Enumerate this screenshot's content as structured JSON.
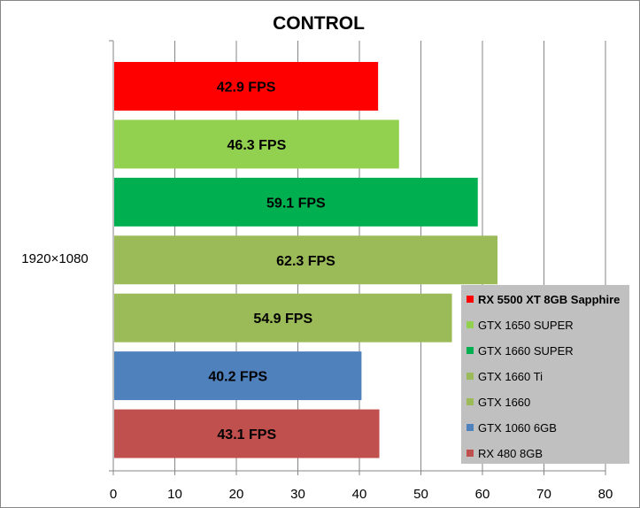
{
  "chart_data": {
    "type": "bar",
    "orientation": "horizontal",
    "title": "CONTROL",
    "category": "1920×1080",
    "xlim": [
      0,
      80
    ],
    "xticks": [
      "0",
      "10",
      "20",
      "30",
      "40",
      "50",
      "60",
      "70",
      "80"
    ],
    "grid": true,
    "legend_position": "bottom-right",
    "series": [
      {
        "name": "RX 5500 XT 8GB Sapphire",
        "value": 42.9,
        "label": "42.9 FPS",
        "color": "#ff0000",
        "highlight": true
      },
      {
        "name": "GTX 1650 SUPER",
        "value": 46.3,
        "label": "46.3 FPS",
        "color": "#92d050"
      },
      {
        "name": "GTX 1660 SUPER",
        "value": 59.1,
        "label": "59.1 FPS",
        "color": "#00b050"
      },
      {
        "name": "GTX 1660 Ti",
        "value": 62.3,
        "label": "62.3 FPS",
        "color": "#9bbb59"
      },
      {
        "name": "GTX 1660",
        "value": 54.9,
        "label": "54.9 FPS",
        "color": "#9bbb59"
      },
      {
        "name": "GTX 1060 6GB",
        "value": 40.2,
        "label": "40.2 FPS",
        "color": "#4f81bd"
      },
      {
        "name": "RX 480 8GB",
        "value": 43.1,
        "label": "43.1 FPS",
        "color": "#c0504d"
      }
    ]
  }
}
